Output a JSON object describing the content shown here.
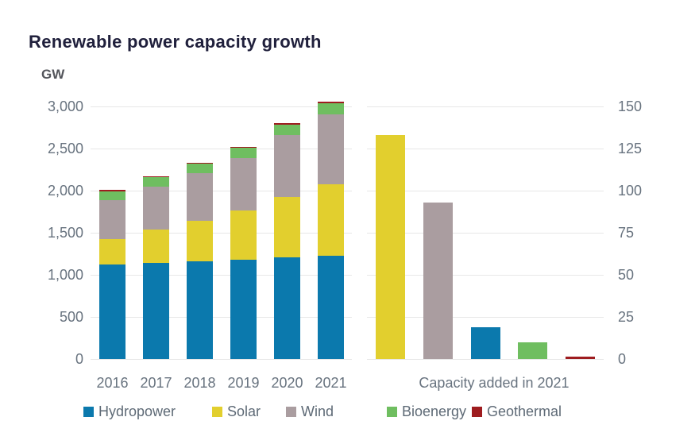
{
  "page": {
    "title": "Renewable power capacity growth"
  },
  "chart_data": {
    "type": "bar",
    "title": "Renewable power capacity growth",
    "unit": "GW",
    "grid": true,
    "legend_position": "bottom",
    "panels": [
      {
        "id": "total-capacity-by-year",
        "type": "stacked-bar",
        "axis_side": "left",
        "categories": [
          "2016",
          "2017",
          "2018",
          "2019",
          "2020",
          "2021"
        ],
        "series": [
          {
            "name": "Hydropower",
            "color": "#0b79ad",
            "values": [
              1127,
              1144,
              1160,
              1183,
              1211,
              1230
            ]
          },
          {
            "name": "Solar",
            "color": "#e2cf2e",
            "values": [
              296,
              390,
              483,
              580,
              714,
              849
            ]
          },
          {
            "name": "Wind",
            "color": "#aa9da0",
            "values": [
              467,
              514,
              563,
              621,
              731,
              825
            ]
          },
          {
            "name": "Bioenergy",
            "color": "#6fbe60",
            "values": [
              104,
              109,
              115,
              121,
              127,
              133
            ]
          },
          {
            "name": "Geothermal",
            "color": "#9e1c1f",
            "values": [
              13,
              13,
              14,
              15,
              15,
              16
            ]
          }
        ],
        "ylabel": "GW",
        "ylim": [
          0,
          3000
        ],
        "ytick_labels": [
          "0",
          "500",
          "1,000",
          "1,500",
          "2,000",
          "2,500",
          "3,000"
        ]
      },
      {
        "id": "capacity-added-2021",
        "type": "bar",
        "axis_side": "right",
        "title": "Capacity added in 2021",
        "bars": [
          {
            "name": "Solar",
            "color": "#e2cf2e",
            "value": 133
          },
          {
            "name": "Wind",
            "color": "#aa9da0",
            "value": 93
          },
          {
            "name": "Hydropower",
            "color": "#0b79ad",
            "value": 19
          },
          {
            "name": "Bioenergy",
            "color": "#6fbe60",
            "value": 10
          },
          {
            "name": "Geothermal",
            "color": "#9e1c1f",
            "value": 1.6
          }
        ],
        "ylim": [
          0,
          150
        ],
        "ytick_labels": [
          "0",
          "25",
          "50",
          "75",
          "100",
          "125",
          "150"
        ]
      }
    ],
    "legend": [
      {
        "label": "Hydropower",
        "color": "#0b79ad"
      },
      {
        "label": "Solar",
        "color": "#e2cf2e"
      },
      {
        "label": "Wind",
        "color": "#aa9da0"
      },
      {
        "label": "Bioenergy",
        "color": "#6fbe60"
      },
      {
        "label": "Geothermal",
        "color": "#9e1c1f"
      }
    ],
    "colors": {
      "title_text": "#20203c",
      "axis_text": "#68737f",
      "grid_line": "#e7e7e7"
    }
  }
}
